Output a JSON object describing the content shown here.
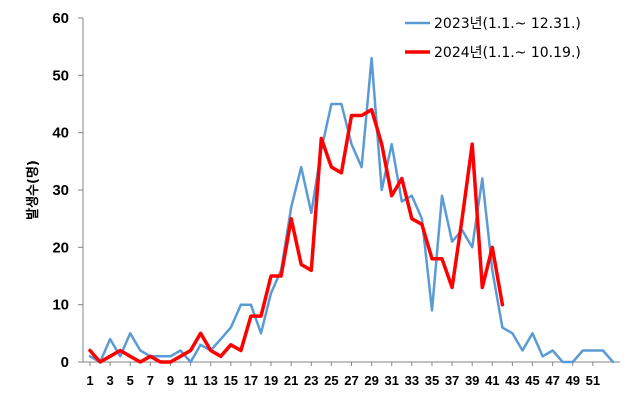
{
  "chart_data": {
    "type": "line",
    "title": "",
    "xlabel": "",
    "ylabel": "발생수(명)",
    "ylim": [
      0,
      60
    ],
    "yticks": [
      0,
      10,
      20,
      30,
      40,
      50,
      60
    ],
    "xtick_labels": [
      "1",
      "3",
      "5",
      "7",
      "9",
      "11",
      "13",
      "15",
      "17",
      "19",
      "21",
      "23",
      "25",
      "27",
      "29",
      "31",
      "33",
      "35",
      "37",
      "39",
      "41",
      "43",
      "45",
      "47",
      "49",
      "51"
    ],
    "grid": false,
    "legend_position": "top-right",
    "series": [
      {
        "name": "2023년(1.1.~ 12.31.)",
        "color": "#5b9bd5",
        "x": [
          1,
          2,
          3,
          4,
          5,
          6,
          7,
          8,
          9,
          10,
          11,
          12,
          13,
          14,
          15,
          16,
          17,
          18,
          19,
          20,
          21,
          22,
          23,
          24,
          25,
          26,
          27,
          28,
          29,
          30,
          31,
          32,
          33,
          34,
          35,
          36,
          37,
          38,
          39,
          40,
          41,
          42,
          43,
          44,
          45,
          46,
          47,
          48,
          49,
          50,
          51,
          52,
          53
        ],
        "values": [
          1,
          0,
          4,
          1,
          5,
          2,
          1,
          1,
          1,
          2,
          0,
          3,
          2,
          4,
          6,
          10,
          10,
          5,
          12,
          16,
          27,
          34,
          26,
          37,
          45,
          45,
          38,
          34,
          53,
          30,
          38,
          28,
          29,
          25,
          9,
          29,
          21,
          23,
          20,
          32,
          16,
          6,
          5,
          2,
          5,
          1,
          2,
          0,
          0,
          2,
          2,
          2,
          0
        ]
      },
      {
        "name": "2024년(1.1.~ 10.19.)",
        "color": "#ff0000",
        "x": [
          1,
          2,
          3,
          4,
          5,
          6,
          7,
          8,
          9,
          10,
          11,
          12,
          13,
          14,
          15,
          16,
          17,
          18,
          19,
          20,
          21,
          22,
          23,
          24,
          25,
          26,
          27,
          28,
          29,
          30,
          31,
          32,
          33,
          34,
          35,
          36,
          37,
          38,
          39,
          40,
          41,
          42
        ],
        "values": [
          2,
          0,
          1,
          2,
          1,
          0,
          1,
          0,
          0,
          1,
          2,
          5,
          2,
          1,
          3,
          2,
          8,
          8,
          15,
          15,
          25,
          17,
          16,
          39,
          34,
          33,
          43,
          43,
          44,
          38,
          29,
          32,
          25,
          24,
          18,
          18,
          13,
          25,
          38,
          13,
          20,
          10
        ]
      }
    ]
  }
}
